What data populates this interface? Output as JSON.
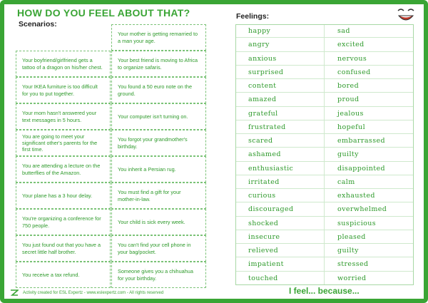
{
  "title": "HOW DO YOU FEEL ABOUT THAT?",
  "scenarios_label": "Scenarios:",
  "feelings_label": "Feelings:",
  "scenarios": [
    "Your mother is getting remarried to a man your age.",
    "Your boyfriend/girlfriend gets a tattoo of a dragon on his/her chest.",
    "Your best friend is moving to Africa to organize safaris.",
    "Your IKEA furniture is too difficult for you to put together.",
    "You found a 50 euro note on the ground.",
    "Your mom hasn't answered your text messages in 5 hours.",
    "Your computer isn't turning on.",
    "You are going to meet your significant other's parents for the first time.",
    "You forgot your grandmother's birthday.",
    "You are attending a lecture on the butterflies of the Amazon.",
    "You inherit a Persian rug.",
    "Your plane has a 3 hour delay.",
    "You must find a gift for your mother-in-law.",
    "You're organizing a conference for 750 people.",
    "Your child is sick every week.",
    "You just found out that you have a secret little half brother.",
    "You can't find your cell phone in your bag/pocket.",
    "You receive a tax refund.",
    "Someone gives you a chihuahua for your birthday."
  ],
  "feelings_left": [
    "happy",
    "angry",
    "anxious",
    "surprised",
    "content",
    "amazed",
    "grateful",
    "frustrated",
    "scared",
    "ashamed",
    "enthusiastic",
    "irritated",
    "curious",
    "discouraged",
    "shocked",
    "insecure",
    "relieved",
    "impatient",
    "touched"
  ],
  "feelings_right": [
    "sad",
    "excited",
    "nervous",
    "confused",
    "bored",
    "proud",
    "jealous",
    "hopeful",
    "embarrassed",
    "guilty",
    "disappointed",
    "calm",
    "exhausted",
    "overwhelmed",
    "suspicious",
    "pleased",
    "guilty",
    "stressed",
    "worried"
  ],
  "footer": "Activity created for ESL Expertz - www.eslexpertz.com - All rights reserved",
  "prompt": "I feel... because...",
  "accent_color": "#3aa535",
  "icons": [
    "logo-icon",
    "smiley-face-icon"
  ]
}
